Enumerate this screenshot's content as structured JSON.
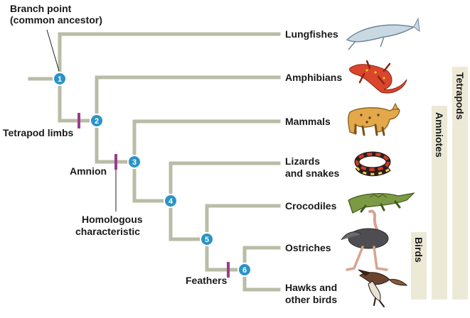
{
  "annotations": {
    "branch_point_line1": "Branch point",
    "branch_point_line2": "(common ancestor)",
    "tetrapod_limbs": "Tetrapod limbs",
    "amnion": "Amnion",
    "homologous_line1": "Homologous",
    "homologous_line2": "characteristic",
    "feathers": "Feathers"
  },
  "nodes": [
    "1",
    "2",
    "3",
    "4",
    "5",
    "6"
  ],
  "taxa": [
    {
      "line1": "Lungfishes",
      "line2": ""
    },
    {
      "line1": "Amphibians",
      "line2": ""
    },
    {
      "line1": "Mammals",
      "line2": ""
    },
    {
      "line1": "Lizards",
      "line2": "and snakes"
    },
    {
      "line1": "Crocodiles",
      "line2": ""
    },
    {
      "line1": "Ostriches",
      "line2": ""
    },
    {
      "line1": "Hawks and",
      "line2": "other birds"
    }
  ],
  "groups": {
    "tetrapods": "Tetrapods",
    "amniotes": "Amniotes",
    "birds": "Birds"
  },
  "icons": [
    "lungfish-icon",
    "salamander-icon",
    "bobcat-icon",
    "snake-icon",
    "crocodile-icon",
    "ostrich-icon",
    "hawk-icon"
  ],
  "colors": {
    "branch": "#b9bca6",
    "node": "#2a93c7",
    "trait_tick": "#9a3b8e",
    "group_bar": "#ecead6"
  }
}
